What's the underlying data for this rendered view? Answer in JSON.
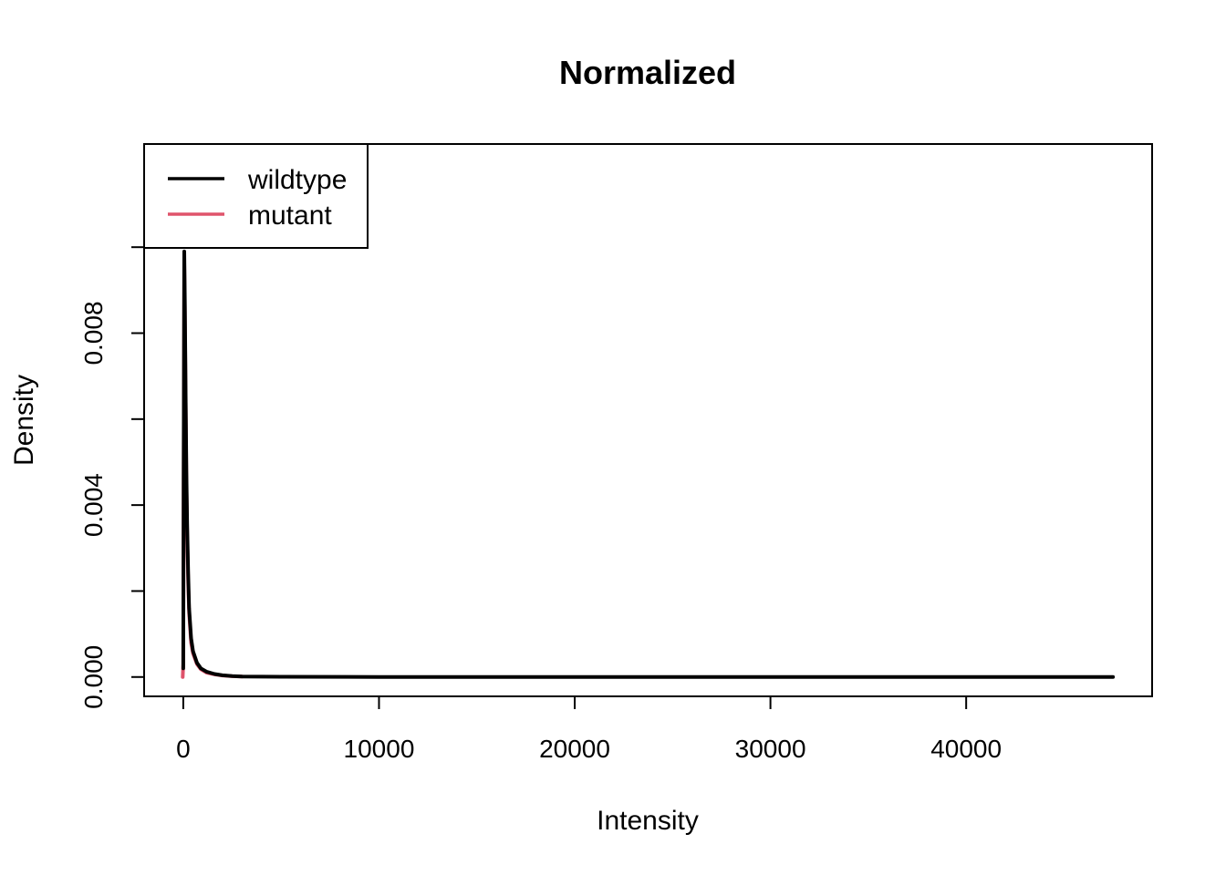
{
  "chart_data": {
    "type": "line",
    "title": "Normalized",
    "xlabel": "Intensity",
    "ylabel": "Density",
    "xlim": [
      -2000,
      49500
    ],
    "ylim": [
      -0.00045,
      0.0124
    ],
    "x_ticks": [
      0,
      10000,
      20000,
      30000,
      40000
    ],
    "x_tick_labels": [
      "0",
      "10000",
      "20000",
      "30000",
      "40000"
    ],
    "y_ticks": [
      0,
      0.002,
      0.004,
      0.006,
      0.008,
      0.01
    ],
    "y_tick_labels": [
      "0.000",
      "",
      "0.004",
      "",
      "0.008",
      ""
    ],
    "grid": false,
    "legend": {
      "placement": "top-left"
    },
    "series": [
      {
        "name": "wildtype",
        "color": "#000000",
        "x": [
          0,
          20,
          50,
          80,
          120,
          160,
          200,
          250,
          300,
          400,
          500,
          700,
          900,
          1200,
          1600,
          2000,
          2500,
          3000,
          5000,
          10000,
          20000,
          30000,
          40000,
          47500
        ],
        "y": [
          0.0002,
          0.0046,
          0.0099,
          0.0088,
          0.0066,
          0.0048,
          0.0035,
          0.0024,
          0.0016,
          0.0009,
          0.0006,
          0.00033,
          0.0002,
          0.00012,
          7e-05,
          4e-05,
          2e-05,
          1.2e-05,
          5e-06,
          2e-06,
          1e-06,
          5e-07,
          2e-07,
          0
        ]
      },
      {
        "name": "mutant",
        "color": "#DF536B",
        "x": [
          -30,
          0,
          20,
          50,
          80,
          120,
          160,
          200,
          250,
          300,
          400,
          500,
          700,
          900,
          1200,
          1600,
          2000,
          2500,
          3000
        ],
        "y": [
          0.0,
          0.0003,
          0.0044,
          0.0096,
          0.0086,
          0.0064,
          0.0046,
          0.0033,
          0.0022,
          0.0015,
          0.0008,
          0.00055,
          0.0003,
          0.00018,
          0.0001,
          6e-05,
          3.5e-05,
          1.8e-05,
          1e-05
        ]
      }
    ]
  }
}
